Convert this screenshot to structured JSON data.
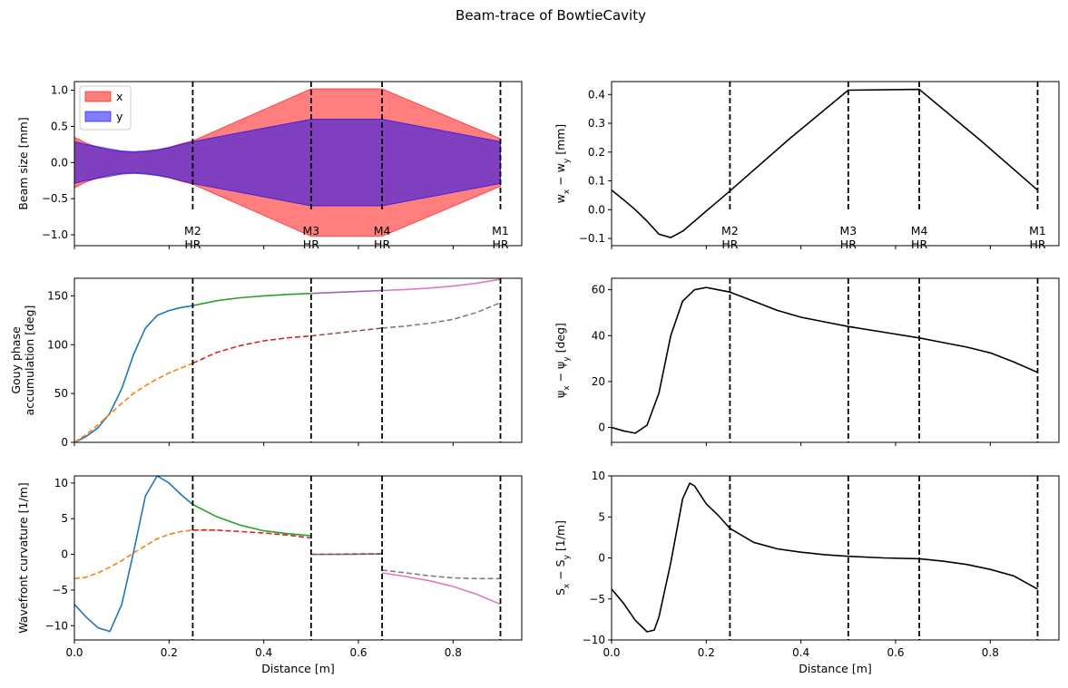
{
  "figure": {
    "title": "Beam-trace of BowtieCavity"
  },
  "chart_data": [
    {
      "id": "beam_size",
      "type": "area",
      "xlabel": "",
      "ylabel": "Beam size [mm]",
      "xlim": [
        0,
        0.945
      ],
      "ylim": [
        -1.15,
        1.12
      ],
      "xticks": [
        0,
        0.2,
        0.4,
        0.6,
        0.8
      ],
      "yticks": [
        -1.0,
        -0.5,
        0.0,
        0.5,
        1.0
      ],
      "ytick_labels": [
        "−1.0",
        "−0.5",
        "0.0",
        "0.5",
        "1.0"
      ],
      "show_xtick_labels": false,
      "legend": {
        "position": "top-left",
        "entries": [
          "x",
          "y"
        ]
      },
      "mirror_labels": true,
      "series": [
        {
          "name": "x",
          "color": "#ff0000",
          "alpha": 0.5,
          "x": [
            0,
            0.025,
            0.05,
            0.075,
            0.1,
            0.125,
            0.15,
            0.175,
            0.2,
            0.225,
            0.25,
            0.5,
            0.65,
            0.9
          ],
          "values": [
            0.35,
            0.27,
            0.21,
            0.17,
            0.15,
            0.14,
            0.15,
            0.17,
            0.21,
            0.26,
            0.3,
            1.02,
            1.02,
            0.33
          ]
        },
        {
          "name": "y",
          "color": "#0000ff",
          "alpha": 0.5,
          "x": [
            0,
            0.025,
            0.05,
            0.075,
            0.1,
            0.125,
            0.15,
            0.175,
            0.2,
            0.225,
            0.25,
            0.5,
            0.65,
            0.9
          ],
          "values": [
            0.29,
            0.25,
            0.22,
            0.19,
            0.16,
            0.15,
            0.16,
            0.18,
            0.21,
            0.25,
            0.29,
            0.6,
            0.6,
            0.29
          ]
        }
      ]
    },
    {
      "id": "w_diff",
      "type": "line",
      "xlabel": "",
      "ylabel": "w_x − w_y [mm]",
      "xlim": [
        0,
        0.945
      ],
      "ylim": [
        -0.125,
        0.445
      ],
      "xticks": [
        0,
        0.2,
        0.4,
        0.6,
        0.8
      ],
      "yticks": [
        -0.1,
        0.0,
        0.1,
        0.2,
        0.3,
        0.4
      ],
      "ytick_labels": [
        "−0.1",
        "0.0",
        "0.1",
        "0.2",
        "0.3",
        "0.4"
      ],
      "show_xtick_labels": false,
      "mirror_labels": true,
      "series": [
        {
          "color": "#000000",
          "dash": false,
          "x": [
            0,
            0.025,
            0.05,
            0.075,
            0.1,
            0.125,
            0.15,
            0.175,
            0.2,
            0.225,
            0.25,
            0.375,
            0.5,
            0.65,
            0.78,
            0.9
          ],
          "values": [
            0.068,
            0.035,
            0.0,
            -0.04,
            -0.085,
            -0.097,
            -0.075,
            -0.04,
            -0.005,
            0.03,
            0.065,
            0.245,
            0.415,
            0.418,
            0.24,
            0.068
          ]
        }
      ]
    },
    {
      "id": "gouy",
      "type": "line",
      "xlabel": "",
      "ylabel": "Gouy phase\naccumulation [deg]",
      "xlim": [
        0,
        0.945
      ],
      "ylim": [
        0,
        168
      ],
      "xticks": [
        0,
        0.2,
        0.4,
        0.6,
        0.8
      ],
      "yticks": [
        0,
        50,
        100,
        150
      ],
      "ytick_labels": [
        "0",
        "50",
        "100",
        "150"
      ],
      "show_xtick_labels": false,
      "mirror_labels": false,
      "series": [
        {
          "color": "#1f77b4",
          "dash": false,
          "x": [
            0,
            0.025,
            0.05,
            0.075,
            0.1,
            0.125,
            0.15,
            0.175,
            0.2,
            0.225,
            0.25
          ],
          "values": [
            0,
            6,
            15,
            30,
            55,
            90,
            117,
            130,
            135,
            138,
            140
          ]
        },
        {
          "color": "#ff7f0e",
          "dash": true,
          "x": [
            0,
            0.025,
            0.05,
            0.075,
            0.1,
            0.125,
            0.15,
            0.175,
            0.2,
            0.225,
            0.25
          ],
          "values": [
            0,
            8,
            18,
            29,
            40,
            50,
            58,
            65,
            71,
            76,
            81
          ]
        },
        {
          "color": "#2ca02c",
          "dash": false,
          "x": [
            0.25,
            0.3,
            0.35,
            0.4,
            0.45,
            0.5
          ],
          "values": [
            140,
            145,
            148,
            150,
            151.5,
            152.5
          ]
        },
        {
          "color": "#d62728",
          "dash": true,
          "x": [
            0.25,
            0.3,
            0.35,
            0.4,
            0.45,
            0.5
          ],
          "values": [
            81,
            92,
            99,
            104,
            107,
            109
          ]
        },
        {
          "color": "#9467bd",
          "dash": false,
          "x": [
            0.5,
            0.575,
            0.65
          ],
          "values": [
            152.5,
            154,
            155.5
          ]
        },
        {
          "color": "#8c564b",
          "dash": true,
          "x": [
            0.5,
            0.575,
            0.65
          ],
          "values": [
            109,
            113,
            117
          ]
        },
        {
          "color": "#e377c2",
          "dash": false,
          "x": [
            0.65,
            0.7,
            0.75,
            0.8,
            0.85,
            0.9
          ],
          "values": [
            155.5,
            156.5,
            158,
            160,
            163,
            167
          ]
        },
        {
          "color": "#7f7f7f",
          "dash": true,
          "x": [
            0.65,
            0.7,
            0.75,
            0.8,
            0.85,
            0.9
          ],
          "values": [
            117,
            119,
            122,
            126,
            133,
            143
          ]
        }
      ]
    },
    {
      "id": "gouy_diff",
      "type": "line",
      "xlabel": "",
      "ylabel": "ψ_x − ψ_y [deg]",
      "xlim": [
        0,
        0.945
      ],
      "ylim": [
        -6.5,
        65
      ],
      "xticks": [
        0,
        0.2,
        0.4,
        0.6,
        0.8
      ],
      "yticks": [
        0,
        20,
        40,
        60
      ],
      "ytick_labels": [
        "0",
        "20",
        "40",
        "60"
      ],
      "show_xtick_labels": false,
      "mirror_labels": false,
      "series": [
        {
          "color": "#000000",
          "dash": false,
          "x": [
            0,
            0.025,
            0.05,
            0.075,
            0.1,
            0.125,
            0.15,
            0.175,
            0.2,
            0.225,
            0.25,
            0.3,
            0.35,
            0.4,
            0.45,
            0.5,
            0.575,
            0.65,
            0.7,
            0.75,
            0.8,
            0.85,
            0.9
          ],
          "values": [
            0,
            -1.5,
            -2.5,
            1,
            15,
            40,
            55,
            60,
            61,
            60,
            59,
            55,
            51,
            48,
            46,
            44,
            41.5,
            39,
            37,
            35,
            32.5,
            28.5,
            24
          ]
        }
      ]
    },
    {
      "id": "curvature",
      "type": "line",
      "xlabel": "Distance [m]",
      "ylabel": "Wavefront curvature [1/m]",
      "xlim": [
        0,
        0.945
      ],
      "ylim": [
        -12,
        11
      ],
      "xticks": [
        0,
        0.2,
        0.4,
        0.6,
        0.8
      ],
      "xtick_labels": [
        "0.0",
        "0.2",
        "0.4",
        "0.6",
        "0.8"
      ],
      "yticks": [
        -10,
        -5,
        0,
        5,
        10
      ],
      "ytick_labels": [
        "−10",
        "−5",
        "0",
        "5",
        "10"
      ],
      "show_xtick_labels": true,
      "mirror_labels": false,
      "series": [
        {
          "color": "#1f77b4",
          "dash": false,
          "x": [
            0,
            0.025,
            0.05,
            0.075,
            0.1,
            0.125,
            0.15,
            0.175,
            0.2,
            0.225,
            0.25
          ],
          "values": [
            -7,
            -8.8,
            -10.3,
            -10.8,
            -7,
            0.3,
            8.2,
            11,
            10,
            8.4,
            7
          ]
        },
        {
          "color": "#ff7f0e",
          "dash": true,
          "x": [
            0,
            0.025,
            0.05,
            0.075,
            0.1,
            0.125,
            0.15,
            0.175,
            0.2,
            0.225,
            0.25,
            0.275,
            0.3
          ],
          "values": [
            -3.4,
            -3.2,
            -2.6,
            -1.8,
            -0.9,
            0.2,
            1.2,
            2.2,
            2.8,
            3.2,
            3.4,
            3.45,
            3.4
          ]
        },
        {
          "color": "#2ca02c",
          "dash": false,
          "x": [
            0.25,
            0.3,
            0.35,
            0.4,
            0.45,
            0.5
          ],
          "values": [
            7,
            5.3,
            4.1,
            3.3,
            2.9,
            2.6
          ]
        },
        {
          "color": "#d62728",
          "dash": true,
          "x": [
            0.25,
            0.3,
            0.35,
            0.4,
            0.45,
            0.5
          ],
          "values": [
            3.4,
            3.4,
            3.2,
            3,
            2.7,
            2.3
          ]
        },
        {
          "color": "#9467bd",
          "dash": false,
          "x": [
            0.5,
            0.575,
            0.65
          ],
          "values": [
            0,
            0,
            0.05
          ]
        },
        {
          "color": "#8c564b",
          "dash": true,
          "x": [
            0.5,
            0.575,
            0.65
          ],
          "values": [
            0,
            0.05,
            0.1
          ]
        },
        {
          "color": "#e377c2",
          "dash": false,
          "x": [
            0.65,
            0.7,
            0.75,
            0.8,
            0.85,
            0.9
          ],
          "values": [
            -2.6,
            -3.1,
            -3.7,
            -4.5,
            -5.6,
            -7
          ]
        },
        {
          "color": "#7f7f7f",
          "dash": true,
          "x": [
            0.65,
            0.7,
            0.75,
            0.8,
            0.85,
            0.9
          ],
          "values": [
            -2.2,
            -2.6,
            -3,
            -3.3,
            -3.4,
            -3.4
          ]
        }
      ]
    },
    {
      "id": "curv_diff",
      "type": "line",
      "xlabel": "Distance [m]",
      "ylabel": "S_x − S_y [1/m]",
      "xlim": [
        0,
        0.945
      ],
      "ylim": [
        -10,
        10
      ],
      "xticks": [
        0,
        0.2,
        0.4,
        0.6,
        0.8
      ],
      "xtick_labels": [
        "0.0",
        "0.2",
        "0.4",
        "0.6",
        "0.8"
      ],
      "yticks": [
        -10,
        -5,
        0,
        5,
        10
      ],
      "ytick_labels": [
        "−10",
        "−5",
        "0",
        "5",
        "10"
      ],
      "show_xtick_labels": true,
      "mirror_labels": false,
      "series": [
        {
          "color": "#000000",
          "dash": false,
          "x": [
            0,
            0.025,
            0.05,
            0.075,
            0.09,
            0.1,
            0.125,
            0.15,
            0.165,
            0.175,
            0.2,
            0.225,
            0.25,
            0.3,
            0.35,
            0.4,
            0.45,
            0.5,
            0.575,
            0.65,
            0.7,
            0.75,
            0.8,
            0.85,
            0.9
          ],
          "values": [
            -3.8,
            -5.5,
            -7.6,
            -9,
            -8.8,
            -7.2,
            -0.6,
            7.2,
            9.1,
            8.8,
            6.6,
            5.2,
            3.6,
            1.9,
            1.1,
            0.7,
            0.4,
            0.2,
            0,
            -0.1,
            -0.4,
            -0.8,
            -1.4,
            -2.2,
            -3.8
          ]
        }
      ]
    }
  ],
  "mirrors": [
    {
      "x": 0.25,
      "name": "M2",
      "type": "HR"
    },
    {
      "x": 0.5,
      "name": "M3",
      "type": "HR"
    },
    {
      "x": 0.65,
      "name": "M4",
      "type": "HR"
    },
    {
      "x": 0.9,
      "name": "M1",
      "type": "HR"
    }
  ]
}
